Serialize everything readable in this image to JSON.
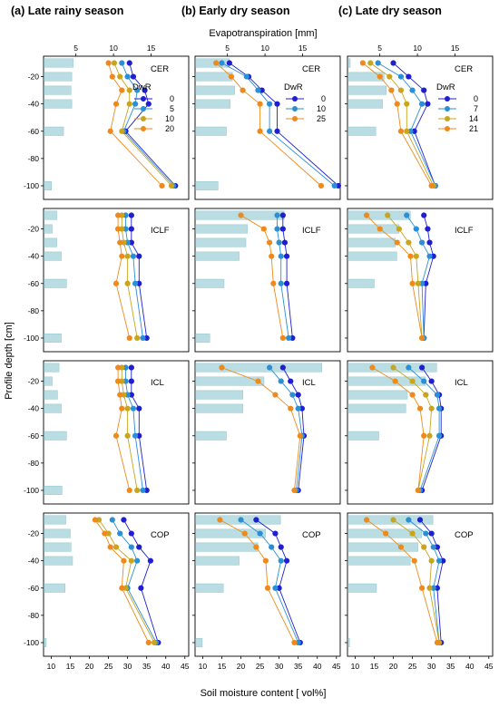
{
  "figure": {
    "column_titles": [
      "(a) Late rainy season",
      "(b) Early dry season",
      "(c) Late dry season"
    ],
    "top_axis_title": "Evapotranspiration [mm]",
    "bottom_axis_title": "Soil moisture content [ vol%]",
    "y_axis_title": "Profile depth [cm]",
    "row_labels": [
      "CER",
      "ICLF",
      "ICL",
      "COP"
    ],
    "legend_title": "DwR"
  },
  "colors": {
    "bar": "#b9dde2",
    "bar_edge": "#97c6cd",
    "series": [
      "#1f1fd1",
      "#2b8fd6",
      "#c8a51d",
      "#ee8a1c"
    ]
  },
  "chart_data": {
    "type": "line",
    "xlabel": "Soil moisture content [ vol%]",
    "x2label": "Evapotranspiration [mm]",
    "ylabel": "Profile depth [cm]",
    "xlim": [
      8,
      46
    ],
    "x2lim": [
      0.7,
      20
    ],
    "ylim": [
      -110,
      -5
    ],
    "x_ticks": [
      10,
      15,
      20,
      25,
      30,
      35,
      40,
      45
    ],
    "x2_ticks": [
      5,
      10,
      15
    ],
    "y_ticks": [
      -20,
      -40,
      -60,
      -80,
      -100
    ],
    "depths": [
      -10,
      -20,
      -30,
      -40,
      -60,
      -100
    ],
    "legend_position": "right",
    "seasons": [
      {
        "legend_values": [
          "0",
          "5",
          "10",
          "20"
        ],
        "rows": [
          {
            "label": "CER",
            "legend": true,
            "et": [
              4.6,
              4.4,
              4.3,
              4.4,
              3.3,
              1.7
            ],
            "series": [
              [
                30.5,
                31.5,
                34.5,
                35.5,
                29.5,
                42.5
              ],
              [
                28.5,
                30.0,
                32.5,
                32.0,
                29.0,
                42.0
              ],
              [
                26.5,
                28.0,
                30.5,
                30.5,
                28.5,
                41.5
              ],
              [
                25.0,
                26.0,
                28.5,
                27.0,
                25.5,
                39.0
              ]
            ]
          },
          {
            "label": "ICLF",
            "legend": false,
            "et": [
              2.4,
              1.8,
              2.4,
              3.0,
              3.7,
              3.0
            ],
            "series": [
              [
                31.0,
                31.0,
                31.0,
                33.0,
                33.0,
                35.0
              ],
              [
                29.5,
                29.5,
                30.0,
                31.5,
                32.0,
                34.0
              ],
              [
                28.5,
                28.5,
                29.0,
                30.0,
                30.0,
                32.5
              ],
              [
                27.5,
                27.5,
                28.0,
                28.5,
                27.0,
                30.5
              ]
            ]
          },
          {
            "label": "ICL",
            "legend": false,
            "et": [
              2.7,
              1.8,
              2.5,
              3.0,
              3.7,
              3.1
            ],
            "series": [
              [
                31.0,
                31.0,
                31.0,
                33.0,
                33.0,
                35.0
              ],
              [
                29.5,
                29.5,
                30.0,
                31.5,
                32.0,
                34.0
              ],
              [
                28.5,
                28.5,
                29.0,
                30.0,
                30.0,
                32.5
              ],
              [
                27.5,
                27.5,
                28.0,
                28.5,
                27.0,
                30.5
              ]
            ]
          },
          {
            "label": "COP",
            "legend": false,
            "et": [
              3.6,
              4.2,
              4.3,
              4.5,
              3.5,
              1.0
            ],
            "series": [
              [
                29.0,
                31.0,
                33.0,
                36.0,
                33.5,
                38.0
              ],
              [
                26.0,
                28.0,
                31.0,
                32.5,
                30.0,
                37.5
              ],
              [
                22.5,
                25.0,
                27.0,
                31.0,
                29.5,
                37.0
              ],
              [
                21.5,
                24.0,
                25.5,
                29.0,
                28.5,
                35.5
              ]
            ]
          }
        ]
      },
      {
        "legend_values": [
          "0",
          "10",
          "25"
        ],
        "rows": [
          {
            "label": "CER",
            "legend": true,
            "et": [
              5.2,
              5.6,
              5.9,
              5.3,
              4.8,
              3.7
            ],
            "series": [
              [
                17.0,
                22.0,
                25.5,
                29.5,
                29.5,
                45.5
              ],
              [
                15.0,
                21.5,
                24.5,
                27.5,
                27.5,
                44.5
              ],
              [
                13.5,
                17.5,
                20.5,
                25.0,
                25.0,
                41.0
              ]
            ]
          },
          {
            "label": "ICLF",
            "legend": false,
            "et": [
              12.5,
              7.6,
              7.4,
              6.5,
              4.5,
              2.6
            ],
            "series": [
              [
                31.0,
                31.0,
                31.5,
                32.0,
                32.0,
                33.5
              ],
              [
                29.5,
                29.5,
                30.0,
                30.5,
                30.5,
                32.5
              ],
              [
                20.0,
                26.0,
                27.5,
                28.0,
                28.5,
                31.0
              ]
            ]
          },
          {
            "label": "ICL",
            "legend": false,
            "et": [
              17.5,
              9.8,
              7.0,
              7.0,
              4.8,
              0.6
            ],
            "series": [
              [
                31.0,
                33.0,
                35.0,
                36.0,
                36.5,
                35.0
              ],
              [
                27.5,
                30.5,
                33.5,
                35.0,
                36.0,
                34.5
              ],
              [
                15.0,
                24.5,
                29.0,
                33.0,
                35.5,
                34.0
              ]
            ]
          },
          {
            "label": "COP",
            "legend": false,
            "et": [
              12.0,
              10.0,
              9.0,
              6.5,
              4.4,
              1.6
            ],
            "series": [
              [
                24.0,
                29.0,
                30.5,
                32.0,
                30.0,
                35.5
              ],
              [
                20.0,
                25.0,
                28.0,
                30.5,
                29.0,
                35.0
              ],
              [
                14.5,
                21.0,
                24.0,
                26.5,
                27.0,
                34.0
              ]
            ]
          }
        ]
      },
      {
        "legend_values": [
          "0",
          "7",
          "14",
          "21"
        ],
        "rows": [
          {
            "label": "CER",
            "legend": true,
            "et": [
              1.0,
              5.5,
              5.8,
              5.3,
              4.4,
              0
            ],
            "series": [
              [
                20.0,
                24.0,
                28.0,
                29.0,
                25.5,
                31.0
              ],
              [
                16.0,
                22.0,
                25.0,
                27.5,
                24.5,
                31.0
              ],
              [
                14.0,
                19.0,
                22.0,
                23.5,
                23.5,
                30.5
              ],
              [
                12.0,
                16.5,
                19.5,
                21.0,
                22.0,
                30.0
              ]
            ]
          },
          {
            "label": "ICLF",
            "legend": false,
            "et": [
              9.0,
              7.5,
              7.0,
              7.2,
              4.2,
              0
            ],
            "series": [
              [
                28.0,
                29.0,
                29.5,
                30.5,
                28.5,
                28.0
              ],
              [
                23.5,
                26.0,
                27.5,
                29.5,
                27.5,
                28.0
              ],
              [
                18.5,
                21.5,
                24.0,
                26.0,
                26.5,
                27.5
              ],
              [
                13.0,
                16.5,
                21.0,
                24.5,
                25.0,
                27.5
              ]
            ]
          },
          {
            "label": "ICL",
            "legend": false,
            "et": [
              12.5,
              11.0,
              8.6,
              8.4,
              4.8,
              0
            ],
            "series": [
              [
                27.5,
                30.0,
                32.0,
                32.5,
                32.5,
                27.5
              ],
              [
                24.0,
                28.0,
                31.5,
                32.0,
                32.0,
                27.0
              ],
              [
                20.0,
                25.0,
                28.5,
                30.0,
                29.5,
                26.5
              ],
              [
                14.5,
                20.5,
                25.0,
                27.0,
                28.0,
                26.5
              ]
            ]
          },
          {
            "label": "COP",
            "legend": false,
            "et": [
              12.0,
              10.5,
              10.0,
              9.0,
              4.5,
              0.9
            ],
            "series": [
              [
                27.0,
                30.0,
                31.5,
                33.0,
                31.5,
                32.5
              ],
              [
                24.0,
                28.5,
                30.5,
                32.0,
                30.5,
                32.0
              ],
              [
                20.0,
                25.0,
                28.0,
                30.0,
                29.5,
                32.0
              ],
              [
                13.0,
                18.0,
                22.0,
                25.5,
                27.5,
                31.5
              ]
            ]
          }
        ]
      }
    ]
  }
}
